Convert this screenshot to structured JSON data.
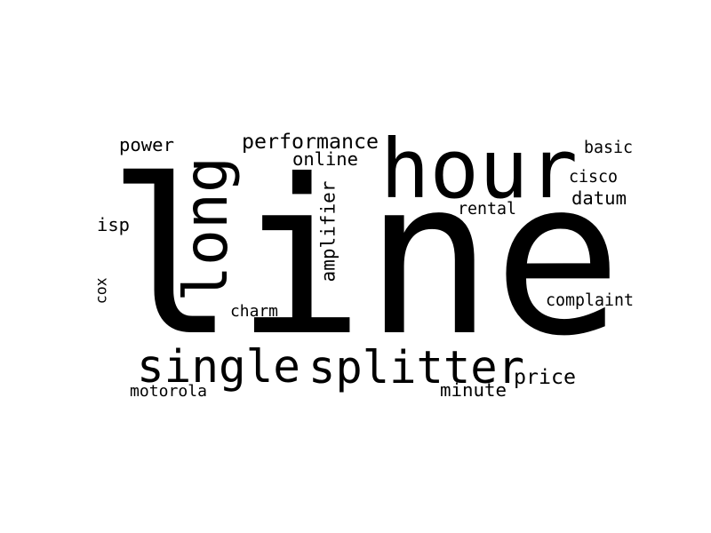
{
  "word_cloud": {
    "text_color": "#000000",
    "background_color": "#ffffff",
    "words": [
      {
        "text": "line",
        "orientation": "horizontal"
      },
      {
        "text": "hour",
        "orientation": "horizontal"
      },
      {
        "text": "long",
        "orientation": "vertical"
      },
      {
        "text": "single",
        "orientation": "horizontal"
      },
      {
        "text": "splitter",
        "orientation": "horizontal"
      },
      {
        "text": "performance",
        "orientation": "horizontal"
      },
      {
        "text": "online",
        "orientation": "horizontal"
      },
      {
        "text": "power",
        "orientation": "horizontal"
      },
      {
        "text": "basic",
        "orientation": "horizontal"
      },
      {
        "text": "cisco",
        "orientation": "horizontal"
      },
      {
        "text": "datum",
        "orientation": "horizontal"
      },
      {
        "text": "rental",
        "orientation": "horizontal"
      },
      {
        "text": "isp",
        "orientation": "horizontal"
      },
      {
        "text": "amplifier",
        "orientation": "vertical"
      },
      {
        "text": "cox",
        "orientation": "vertical"
      },
      {
        "text": "charm",
        "orientation": "horizontal"
      },
      {
        "text": "complaint",
        "orientation": "horizontal"
      },
      {
        "text": "price",
        "orientation": "horizontal"
      },
      {
        "text": "minute",
        "orientation": "horizontal"
      },
      {
        "text": "motorola",
        "orientation": "horizontal"
      }
    ]
  }
}
